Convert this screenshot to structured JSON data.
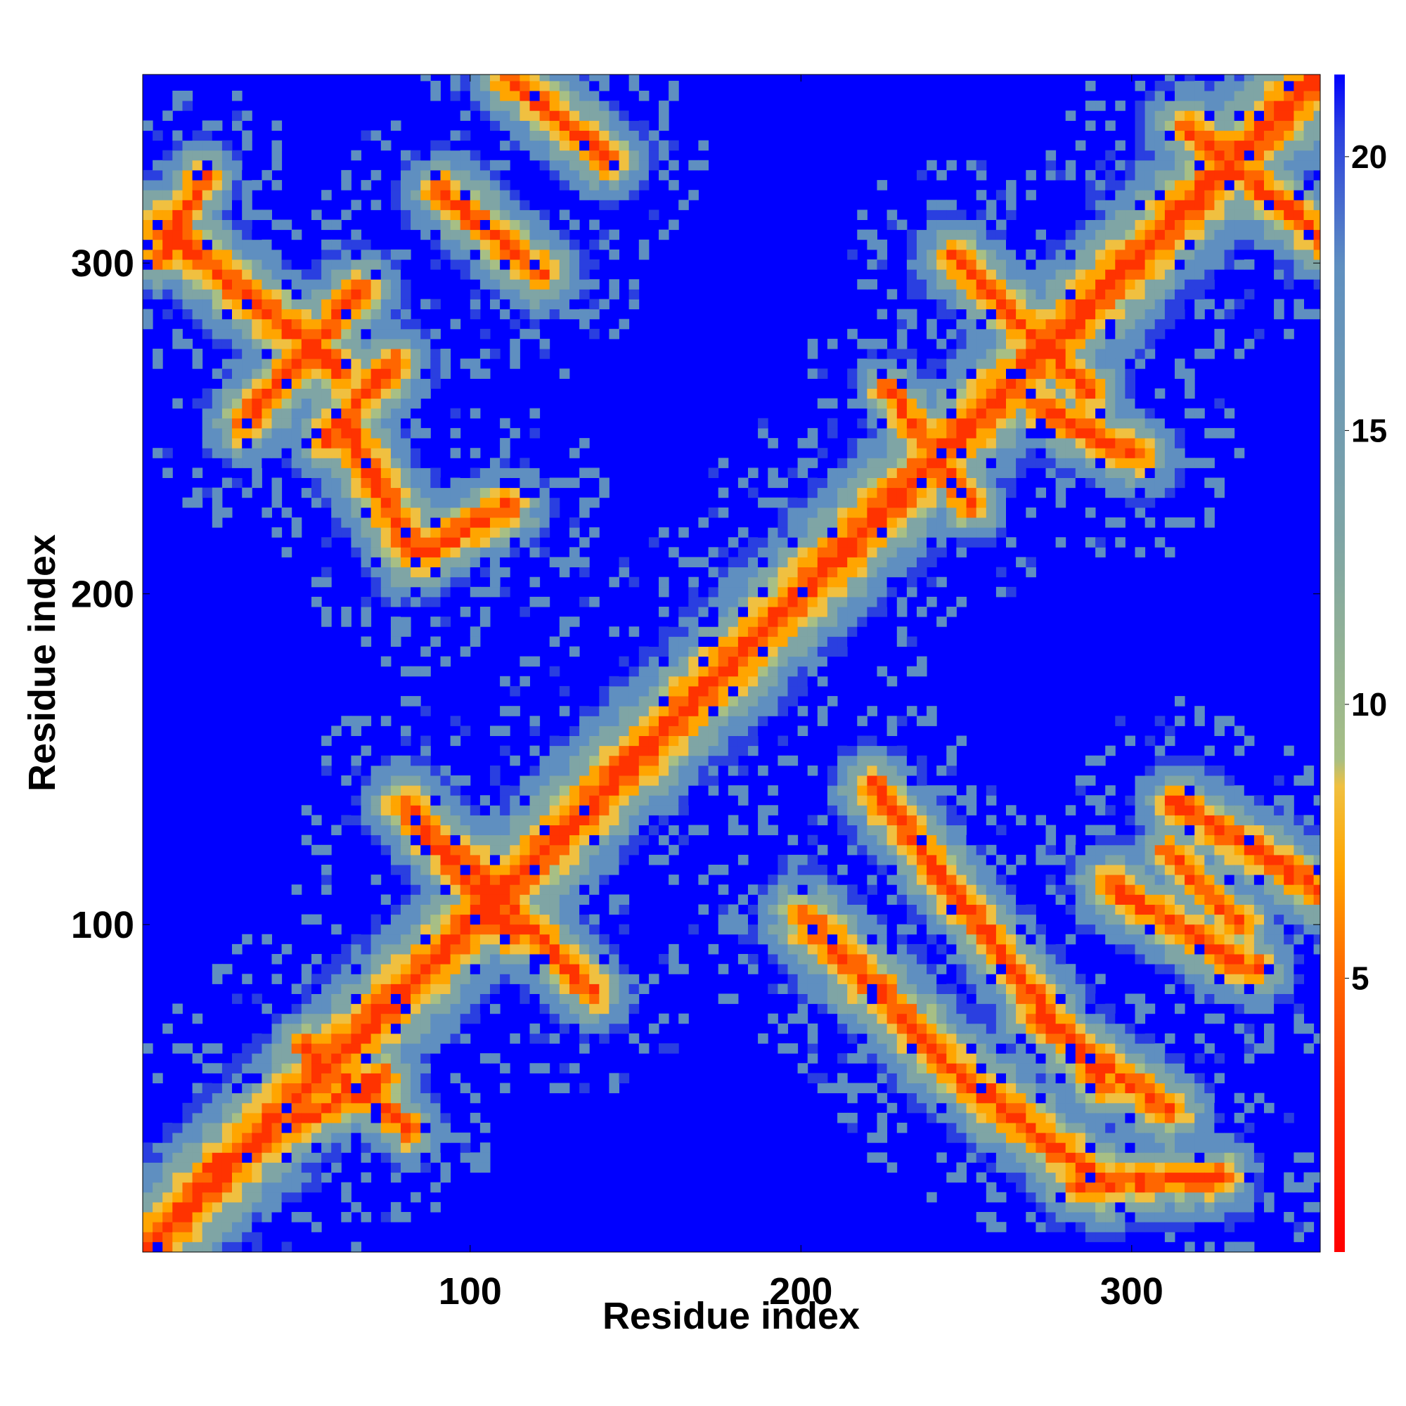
{
  "chart_data": {
    "type": "heatmap",
    "title": "",
    "xlabel": "Residue index",
    "ylabel": "Residue index",
    "xlim": [
      1,
      357
    ],
    "ylim": [
      1,
      357
    ],
    "x_ticks": [
      100,
      200,
      300
    ],
    "y_ticks": [
      100,
      200,
      300
    ],
    "x_tick_labels": [
      "100",
      "200",
      "300"
    ],
    "y_tick_labels": [
      "100",
      "200",
      "300"
    ],
    "colorbar": {
      "range": [
        0,
        21.5
      ],
      "ticks": [
        5,
        10,
        15,
        20
      ],
      "tick_labels": [
        "5",
        "10",
        "15",
        "20"
      ],
      "colors": [
        {
          "value": 0,
          "color": "#ff0000"
        },
        {
          "value": 3,
          "color": "#ff3300"
        },
        {
          "value": 5,
          "color": "#ff6600"
        },
        {
          "value": 7,
          "color": "#ffa500"
        },
        {
          "value": 8.5,
          "color": "#f0c040"
        },
        {
          "value": 9,
          "color": "#a7bf85"
        },
        {
          "value": 13,
          "color": "#7fa5a5"
        },
        {
          "value": 18,
          "color": "#5f8fc0"
        },
        {
          "value": 20.5,
          "color": "#2a3fe0"
        },
        {
          "value": 21.5,
          "color": "#0000ff"
        }
      ]
    },
    "background_value": 21.5,
    "colors": {
      "background": "#0000ff",
      "contact": "#ff0000"
    },
    "description_note": "",
    "contact_segments": [
      {
        "from": [
          1,
          1
        ],
        "to": [
          357,
          357
        ],
        "width": 10
      },
      {
        "from": [
          20,
          25
        ],
        "to": [
          72,
          52
        ],
        "width": 7
      },
      {
        "from": [
          48,
          62
        ],
        "to": [
          80,
          36
        ],
        "width": 6
      },
      {
        "from": [
          78,
          135
        ],
        "to": [
          112,
          95
        ],
        "width": 7
      },
      {
        "from": [
          95,
          120
        ],
        "to": [
          135,
          78
        ],
        "width": 7
      },
      {
        "from": [
          220,
          140
        ],
        "to": [
          290,
          50
        ],
        "width": 7
      },
      {
        "from": [
          200,
          100
        ],
        "to": [
          240,
          60
        ],
        "width": 8
      },
      {
        "from": [
          240,
          58
        ],
        "to": [
          290,
          20
        ],
        "width": 8
      },
      {
        "from": [
          282,
          20
        ],
        "to": [
          325,
          22
        ],
        "width": 7
      },
      {
        "from": [
          270,
          70
        ],
        "to": [
          310,
          42
        ],
        "width": 7
      },
      {
        "from": [
          292,
          110
        ],
        "to": [
          335,
          85
        ],
        "width": 7
      },
      {
        "from": [
          312,
          135
        ],
        "to": [
          357,
          108
        ],
        "width": 7
      },
      {
        "from": [
          310,
          120
        ],
        "to": [
          332,
          98
        ],
        "width": 6
      },
      {
        "from": [
          5,
          310
        ],
        "to": [
          60,
          265
        ],
        "width": 8
      },
      {
        "from": [
          30,
          250
        ],
        "to": [
          65,
          290
        ],
        "width": 7
      },
      {
        "from": [
          55,
          245
        ],
        "to": [
          75,
          268
        ],
        "width": 7
      },
      {
        "from": [
          60,
          250
        ],
        "to": [
          82,
          210
        ],
        "width": 8
      },
      {
        "from": [
          82,
          210
        ],
        "to": [
          110,
          225
        ],
        "width": 7
      },
      {
        "from": [
          18,
          325
        ],
        "to": [
          5,
          300
        ],
        "width": 6
      },
      {
        "from": [
          90,
          320
        ],
        "to": [
          120,
          295
        ],
        "width": 7
      },
      {
        "from": [
          110,
          355
        ],
        "to": [
          140,
          330
        ],
        "width": 7
      },
      {
        "from": [
          245,
          300
        ],
        "to": [
          285,
          260
        ],
        "width": 7
      },
      {
        "from": [
          270,
          255
        ],
        "to": [
          300,
          240
        ],
        "width": 7
      },
      {
        "from": [
          315,
          340
        ],
        "to": [
          357,
          305
        ],
        "width": 7
      },
      {
        "from": [
          225,
          260
        ],
        "to": [
          250,
          225
        ],
        "width": 6
      }
    ]
  }
}
